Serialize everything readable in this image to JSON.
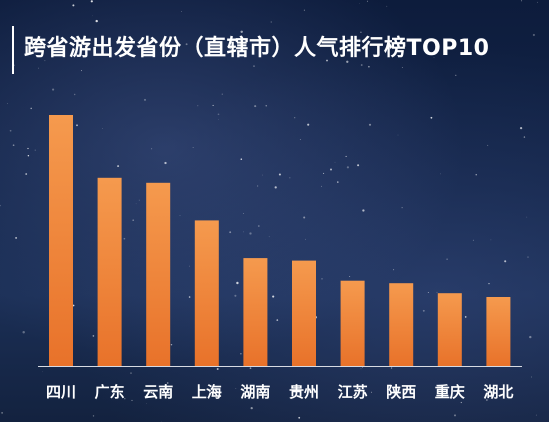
{
  "title": "跨省游出发省份（直辖市）人气排行榜TOP10",
  "colors": {
    "bar_top": "#f59a4e",
    "bar_bottom": "#e8722a",
    "axis": "#d7dbe3",
    "label": "#ffffff"
  },
  "chart_data": {
    "type": "bar",
    "title": "跨省游出发省份（直辖市）人气排行榜TOP10",
    "categories": [
      "四川",
      "广东",
      "云南",
      "上海",
      "湖南",
      "贵州",
      "江苏",
      "陕西",
      "重庆",
      "湖北"
    ],
    "values": [
      100,
      75,
      73,
      58,
      43,
      42,
      34,
      33,
      29,
      27.5
    ],
    "ylim": [
      0,
      100
    ],
    "grid": false,
    "legend": "none",
    "xlabel": "",
    "ylabel": ""
  }
}
